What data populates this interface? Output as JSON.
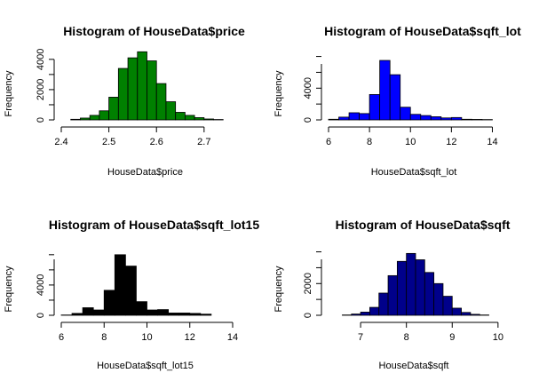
{
  "chart_data": [
    {
      "type": "bar",
      "title": "Histogram of HouseData$price",
      "xlabel": "HouseData$price",
      "ylabel": "Frequency",
      "color": "#008000",
      "xlim": [
        2.4,
        2.76
      ],
      "ylim": [
        0,
        4400
      ],
      "xticks": [
        "2.4",
        "2.5",
        "2.6",
        "2.7"
      ],
      "yticks": [
        "0",
        "2000",
        "4000"
      ],
      "bins": [
        {
          "from": 2.42,
          "to": 2.44,
          "count": 40
        },
        {
          "from": 2.44,
          "to": 2.46,
          "count": 120
        },
        {
          "from": 2.46,
          "to": 2.48,
          "count": 300
        },
        {
          "from": 2.48,
          "to": 2.5,
          "count": 600
        },
        {
          "from": 2.5,
          "to": 2.52,
          "count": 1500
        },
        {
          "from": 2.52,
          "to": 2.54,
          "count": 3400
        },
        {
          "from": 2.54,
          "to": 2.56,
          "count": 4100
        },
        {
          "from": 2.56,
          "to": 2.58,
          "count": 4500
        },
        {
          "from": 2.58,
          "to": 2.6,
          "count": 3900
        },
        {
          "from": 2.6,
          "to": 2.62,
          "count": 2400
        },
        {
          "from": 2.62,
          "to": 2.64,
          "count": 1200
        },
        {
          "from": 2.64,
          "to": 2.66,
          "count": 500
        },
        {
          "from": 2.66,
          "to": 2.68,
          "count": 300
        },
        {
          "from": 2.68,
          "to": 2.7,
          "count": 150
        },
        {
          "from": 2.7,
          "to": 2.72,
          "count": 60
        },
        {
          "from": 2.72,
          "to": 2.74,
          "count": 25
        }
      ]
    },
    {
      "type": "bar",
      "title": "Histogram of HouseData$sqft_lot",
      "xlabel": "HouseData$sqft_lot",
      "ylabel": "Frequency",
      "color": "#0000FF",
      "xlim": [
        6,
        14.5
      ],
      "ylim": [
        0,
        8400
      ],
      "xticks": [
        "6",
        "8",
        "10",
        "12",
        "14"
      ],
      "yticks": [
        "0",
        "4000"
      ],
      "bins": [
        {
          "from": 6.0,
          "to": 6.5,
          "count": 80
        },
        {
          "from": 6.5,
          "to": 7.0,
          "count": 350
        },
        {
          "from": 7.0,
          "to": 7.5,
          "count": 900
        },
        {
          "from": 7.5,
          "to": 8.0,
          "count": 800
        },
        {
          "from": 8.0,
          "to": 8.5,
          "count": 3200
        },
        {
          "from": 8.5,
          "to": 9.0,
          "count": 7500
        },
        {
          "from": 9.0,
          "to": 9.5,
          "count": 5700
        },
        {
          "from": 9.5,
          "to": 10.0,
          "count": 1600
        },
        {
          "from": 10.0,
          "to": 10.5,
          "count": 700
        },
        {
          "from": 10.5,
          "to": 11.0,
          "count": 550
        },
        {
          "from": 11.0,
          "to": 11.5,
          "count": 400
        },
        {
          "from": 11.5,
          "to": 12.0,
          "count": 250
        },
        {
          "from": 12.0,
          "to": 12.5,
          "count": 300
        },
        {
          "from": 12.5,
          "to": 13.0,
          "count": 80
        },
        {
          "from": 13.0,
          "to": 13.5,
          "count": 60
        },
        {
          "from": 13.5,
          "to": 14.0,
          "count": 40
        }
      ]
    },
    {
      "type": "bar",
      "title": "Histogram of HouseData$sqft_lot15",
      "xlabel": "HouseData$sqft_lot15",
      "ylabel": "Frequency",
      "color": "#000000",
      "xlim": [
        6,
        14
      ],
      "ylim": [
        0,
        8800
      ],
      "xticks": [
        "6",
        "8",
        "10",
        "12",
        "14"
      ],
      "yticks": [
        "0",
        "4000"
      ],
      "bins": [
        {
          "from": 6.0,
          "to": 6.5,
          "count": 40
        },
        {
          "from": 6.5,
          "to": 7.0,
          "count": 250
        },
        {
          "from": 7.0,
          "to": 7.5,
          "count": 1000
        },
        {
          "from": 7.5,
          "to": 8.0,
          "count": 700
        },
        {
          "from": 8.0,
          "to": 8.5,
          "count": 3300
        },
        {
          "from": 8.5,
          "to": 9.0,
          "count": 8000
        },
        {
          "from": 9.0,
          "to": 9.5,
          "count": 6500
        },
        {
          "from": 9.5,
          "to": 10.0,
          "count": 1800
        },
        {
          "from": 10.0,
          "to": 10.5,
          "count": 700
        },
        {
          "from": 10.5,
          "to": 11.0,
          "count": 750
        },
        {
          "from": 11.0,
          "to": 11.5,
          "count": 300
        },
        {
          "from": 11.5,
          "to": 12.0,
          "count": 300
        },
        {
          "from": 12.0,
          "to": 12.5,
          "count": 250
        },
        {
          "from": 12.5,
          "to": 13.0,
          "count": 150
        }
      ]
    },
    {
      "type": "bar",
      "title": "Histogram of HouseData$sqft",
      "xlabel": "HouseData$sqft",
      "ylabel": "Frequency",
      "color": "#00008B",
      "xlim": [
        6.3,
        10.1
      ],
      "ylim": [
        0,
        4200
      ],
      "xticks": [
        "7",
        "8",
        "9",
        "10"
      ],
      "yticks": [
        "0",
        "2000"
      ],
      "bins": [
        {
          "from": 6.6,
          "to": 6.8,
          "count": 20
        },
        {
          "from": 6.8,
          "to": 7.0,
          "count": 80
        },
        {
          "from": 7.0,
          "to": 7.2,
          "count": 200
        },
        {
          "from": 7.2,
          "to": 7.4,
          "count": 500
        },
        {
          "from": 7.4,
          "to": 7.6,
          "count": 1400
        },
        {
          "from": 7.6,
          "to": 7.8,
          "count": 2500
        },
        {
          "from": 7.8,
          "to": 8.0,
          "count": 3400
        },
        {
          "from": 8.0,
          "to": 8.2,
          "count": 3900
        },
        {
          "from": 8.2,
          "to": 8.4,
          "count": 3500
        },
        {
          "from": 8.4,
          "to": 8.6,
          "count": 2700
        },
        {
          "from": 8.6,
          "to": 8.8,
          "count": 2000
        },
        {
          "from": 8.8,
          "to": 9.0,
          "count": 1200
        },
        {
          "from": 9.0,
          "to": 9.2,
          "count": 450
        },
        {
          "from": 9.2,
          "to": 9.4,
          "count": 180
        },
        {
          "from": 9.4,
          "to": 9.6,
          "count": 60
        },
        {
          "from": 9.6,
          "to": 9.8,
          "count": 20
        }
      ]
    }
  ]
}
